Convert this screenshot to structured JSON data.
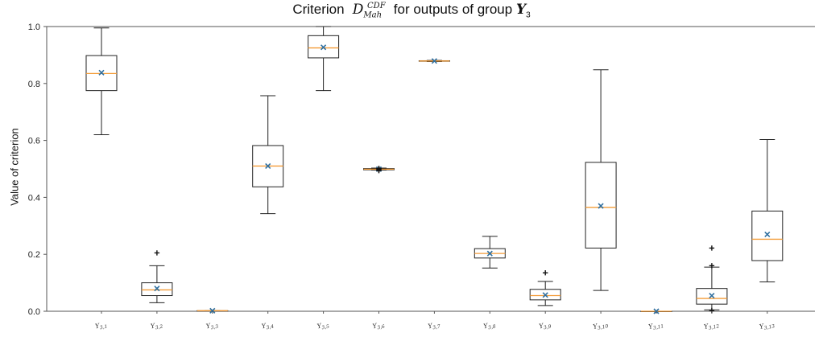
{
  "chart_data": {
    "type": "box",
    "title_prefix": "Criterion",
    "title_symbol": "D",
    "title_subscript": "Mah",
    "title_superscript": "CDF",
    "title_suffix": "for outputs of group",
    "title_group": "Y",
    "title_group_index": "3",
    "xlabel": "",
    "ylabel": "Value of criterion",
    "ylim": [
      0.0,
      1.0
    ],
    "yticks": [
      "0.0",
      "0.2",
      "0.4",
      "0.6",
      "0.8",
      "1.0"
    ],
    "categories": [
      "Y3,1",
      "Y3,2",
      "Y3,3",
      "Y3,4",
      "Y3,5",
      "Y3,6",
      "Y3,7",
      "Y3,8",
      "Y3,9",
      "Y3,10",
      "Y3,11",
      "Y3,12",
      "Y3,13"
    ],
    "boxes": [
      {
        "whislo": 0.62,
        "q1": 0.775,
        "med": 0.835,
        "q3": 0.898,
        "whishi": 0.995,
        "mean": 0.838,
        "fliers": []
      },
      {
        "whislo": 0.03,
        "q1": 0.055,
        "med": 0.075,
        "q3": 0.1,
        "whishi": 0.16,
        "mean": 0.08,
        "fliers": [
          0.205
        ]
      },
      {
        "whislo": 0.002,
        "q1": 0.002,
        "med": 0.002,
        "q3": 0.002,
        "whishi": 0.002,
        "mean": 0.002,
        "fliers": []
      },
      {
        "whislo": 0.343,
        "q1": 0.437,
        "med": 0.51,
        "q3": 0.582,
        "whishi": 0.757,
        "mean": 0.51,
        "fliers": []
      },
      {
        "whislo": 0.775,
        "q1": 0.89,
        "med": 0.925,
        "q3": 0.968,
        "whishi": 1.0,
        "mean": 0.927,
        "fliers": []
      },
      {
        "whislo": 0.496,
        "q1": 0.497,
        "med": 0.499,
        "q3": 0.501,
        "whishi": 0.503,
        "mean": 0.499,
        "fliers": [
          0.494,
          0.497,
          0.5,
          0.502
        ]
      },
      {
        "whislo": 0.877,
        "q1": 0.878,
        "med": 0.879,
        "q3": 0.88,
        "whishi": 0.881,
        "mean": 0.879,
        "fliers": []
      },
      {
        "whislo": 0.152,
        "q1": 0.187,
        "med": 0.203,
        "q3": 0.22,
        "whishi": 0.263,
        "mean": 0.203,
        "fliers": []
      },
      {
        "whislo": 0.02,
        "q1": 0.04,
        "med": 0.055,
        "q3": 0.077,
        "whishi": 0.105,
        "mean": 0.057,
        "fliers": [
          0.135
        ]
      },
      {
        "whislo": 0.073,
        "q1": 0.222,
        "med": 0.365,
        "q3": 0.523,
        "whishi": 0.848,
        "mean": 0.37,
        "fliers": []
      },
      {
        "whislo": 0.0,
        "q1": 0.0,
        "med": 0.0,
        "q3": 0.0,
        "whishi": 0.0,
        "mean": 0.0,
        "fliers": []
      },
      {
        "whislo": 0.005,
        "q1": 0.025,
        "med": 0.045,
        "q3": 0.08,
        "whishi": 0.155,
        "mean": 0.055,
        "fliers": [
          0.16,
          0.222,
          0.003
        ]
      },
      {
        "whislo": 0.103,
        "q1": 0.178,
        "med": 0.253,
        "q3": 0.352,
        "whishi": 0.603,
        "mean": 0.27,
        "fliers": []
      }
    ],
    "colors": {
      "box": "#222222",
      "median": "#f39c38",
      "mean": "#2f6f9f",
      "flier": "#111111",
      "axis": "#555555"
    },
    "grid": false,
    "legend": "none"
  }
}
